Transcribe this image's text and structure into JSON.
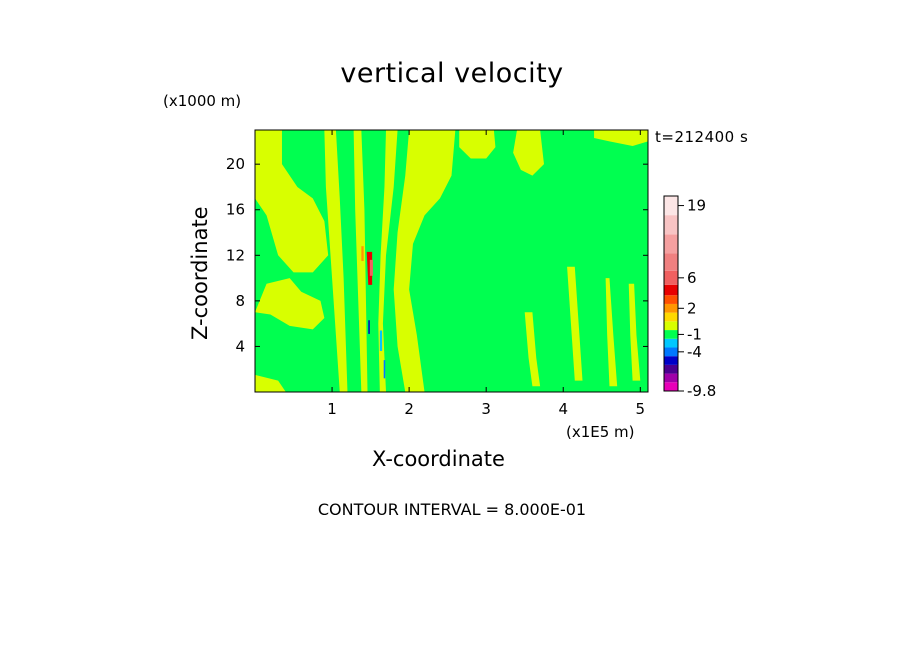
{
  "chart_data": {
    "type": "heatmap",
    "title": "vertical velocity",
    "xlabel": "X-coordinate",
    "ylabel": "Z-coordinate",
    "x_unit_label": "(x1E5 m)",
    "z_unit_label": "(x1000 m)",
    "time_label": "t=212400 s",
    "footer": "CONTOUR INTERVAL = 8.000E-01",
    "xlim": [
      0,
      5.1
    ],
    "ylim": [
      0,
      23
    ],
    "x_ticks": [
      {
        "value": 1,
        "label": "1"
      },
      {
        "value": 2,
        "label": "2"
      },
      {
        "value": 3,
        "label": "3"
      },
      {
        "value": 4,
        "label": "4"
      },
      {
        "value": 5,
        "label": "5"
      }
    ],
    "y_ticks": [
      {
        "value": 4,
        "label": "4"
      },
      {
        "value": 8,
        "label": "8"
      },
      {
        "value": 12,
        "label": "12"
      },
      {
        "value": 16,
        "label": "16"
      },
      {
        "value": 20,
        "label": "20"
      }
    ],
    "colorbar": {
      "colors": [
        "#e800b8",
        "#a000a8",
        "#4b0090",
        "#0000c8",
        "#0078ff",
        "#00c8ff",
        "#00ff50",
        "#d8ff00",
        "#ffd800",
        "#ff9600",
        "#ff5000",
        "#e80000",
        "#f06060",
        "#f08080",
        "#f5a0a0",
        "#f8c4c4",
        "#fce6e6"
      ],
      "labels": [
        "-9.8",
        "-4",
        "-1",
        "2",
        "6",
        "19"
      ],
      "label_levels": [
        0,
        4,
        6,
        9,
        12,
        16
      ]
    },
    "regions": [
      {
        "color": "#d8ff00",
        "polygon": [
          [
            0,
            23
          ],
          [
            0.35,
            23
          ],
          [
            0.35,
            20
          ],
          [
            0.55,
            18
          ],
          [
            0.75,
            17
          ],
          [
            0.9,
            15
          ],
          [
            0.95,
            12
          ],
          [
            0.75,
            10.5
          ],
          [
            0.5,
            10.5
          ],
          [
            0.3,
            12
          ],
          [
            0.15,
            15.5
          ],
          [
            0,
            17
          ]
        ]
      },
      {
        "color": "#d8ff00",
        "polygon": [
          [
            0.15,
            9.5
          ],
          [
            0.45,
            10
          ],
          [
            0.6,
            8.8
          ],
          [
            0.85,
            8
          ],
          [
            0.9,
            6.5
          ],
          [
            0.75,
            5.5
          ],
          [
            0.45,
            5.8
          ],
          [
            0.2,
            6.8
          ],
          [
            0,
            7
          ]
        ]
      },
      {
        "color": "#d8ff00",
        "polygon": [
          [
            0,
            1.5
          ],
          [
            0.3,
            1
          ],
          [
            0.4,
            0
          ],
          [
            0,
            0
          ]
        ]
      },
      {
        "color": "#d8ff00",
        "polygon": [
          [
            0.9,
            23
          ],
          [
            1.05,
            23
          ],
          [
            1.1,
            17
          ],
          [
            1.15,
            10
          ],
          [
            1.18,
            4
          ],
          [
            1.2,
            0
          ],
          [
            1.1,
            0
          ],
          [
            1.05,
            5
          ],
          [
            0.98,
            12
          ],
          [
            0.92,
            18
          ]
        ]
      },
      {
        "color": "#d8ff00",
        "polygon": [
          [
            1.28,
            23
          ],
          [
            1.38,
            23
          ],
          [
            1.42,
            16
          ],
          [
            1.44,
            8
          ],
          [
            1.46,
            0
          ],
          [
            1.38,
            0
          ],
          [
            1.34,
            8
          ],
          [
            1.3,
            16
          ]
        ]
      },
      {
        "color": "#d8ff00",
        "polygon": [
          [
            1.7,
            23
          ],
          [
            1.85,
            23
          ],
          [
            1.8,
            18
          ],
          [
            1.7,
            12
          ],
          [
            1.66,
            6
          ],
          [
            1.7,
            0
          ],
          [
            1.62,
            0
          ],
          [
            1.6,
            6
          ],
          [
            1.63,
            12
          ],
          [
            1.68,
            18
          ]
        ]
      },
      {
        "color": "#d8ff00",
        "polygon": [
          [
            2.0,
            23
          ],
          [
            2.6,
            23
          ],
          [
            2.55,
            19
          ],
          [
            2.4,
            17
          ],
          [
            2.2,
            15.5
          ],
          [
            2.05,
            13
          ],
          [
            2.0,
            9
          ],
          [
            2.1,
            5
          ],
          [
            2.2,
            0
          ],
          [
            1.95,
            0
          ],
          [
            1.85,
            4
          ],
          [
            1.8,
            9
          ],
          [
            1.85,
            14
          ],
          [
            1.95,
            19
          ]
        ]
      },
      {
        "color": "#d8ff00",
        "polygon": [
          [
            2.65,
            23
          ],
          [
            3.1,
            23
          ],
          [
            3.12,
            21.5
          ],
          [
            3.0,
            20.5
          ],
          [
            2.8,
            20.5
          ],
          [
            2.65,
            21.5
          ]
        ]
      },
      {
        "color": "#d8ff00",
        "polygon": [
          [
            3.4,
            23
          ],
          [
            3.7,
            23
          ],
          [
            3.75,
            20
          ],
          [
            3.6,
            19
          ],
          [
            3.45,
            19.5
          ],
          [
            3.35,
            21
          ]
        ]
      },
      {
        "color": "#d8ff00",
        "polygon": [
          [
            4.4,
            23
          ],
          [
            5.1,
            23
          ],
          [
            5.1,
            22
          ],
          [
            4.9,
            21.6
          ],
          [
            4.6,
            22
          ],
          [
            4.4,
            22.3
          ]
        ]
      },
      {
        "color": "#d8ff00",
        "polygon": [
          [
            4.05,
            11
          ],
          [
            4.15,
            11
          ],
          [
            4.2,
            6
          ],
          [
            4.25,
            1
          ],
          [
            4.15,
            1
          ],
          [
            4.1,
            6
          ]
        ]
      },
      {
        "color": "#d8ff00",
        "polygon": [
          [
            4.55,
            10
          ],
          [
            4.6,
            10
          ],
          [
            4.65,
            5
          ],
          [
            4.7,
            0.5
          ],
          [
            4.6,
            0.5
          ],
          [
            4.57,
            5
          ]
        ]
      },
      {
        "color": "#d8ff00",
        "polygon": [
          [
            4.85,
            9.5
          ],
          [
            4.92,
            9.5
          ],
          [
            4.95,
            5
          ],
          [
            5.0,
            1
          ],
          [
            4.9,
            1
          ],
          [
            4.87,
            5
          ]
        ]
      },
      {
        "color": "#d8ff00",
        "polygon": [
          [
            3.5,
            7
          ],
          [
            3.6,
            7
          ],
          [
            3.65,
            3
          ],
          [
            3.7,
            0.5
          ],
          [
            3.6,
            0.5
          ],
          [
            3.55,
            3
          ]
        ]
      },
      {
        "color": "#e80000",
        "polygon": [
          [
            1.45,
            12.3
          ],
          [
            1.52,
            12.3
          ],
          [
            1.52,
            9.4
          ],
          [
            1.47,
            9.4
          ]
        ]
      },
      {
        "color": "#f06060",
        "polygon": [
          [
            1.49,
            11.6
          ],
          [
            1.53,
            11.6
          ],
          [
            1.53,
            10.2
          ],
          [
            1.49,
            10.2
          ]
        ]
      },
      {
        "color": "#00c8ff",
        "polygon": [
          [
            1.62,
            5.4
          ],
          [
            1.65,
            5.4
          ],
          [
            1.65,
            3.6
          ],
          [
            1.62,
            3.6
          ]
        ]
      },
      {
        "color": "#0000c8",
        "polygon": [
          [
            1.47,
            6.3
          ],
          [
            1.49,
            6.3
          ],
          [
            1.49,
            5.1
          ],
          [
            1.47,
            5.1
          ]
        ]
      },
      {
        "color": "#0078ff",
        "polygon": [
          [
            1.67,
            2.8
          ],
          [
            1.69,
            2.8
          ],
          [
            1.69,
            1.2
          ],
          [
            1.67,
            1.2
          ]
        ]
      },
      {
        "color": "#ff9600",
        "polygon": [
          [
            1.38,
            12.8
          ],
          [
            1.41,
            12.8
          ],
          [
            1.41,
            11.5
          ],
          [
            1.38,
            11.5
          ]
        ]
      }
    ]
  }
}
